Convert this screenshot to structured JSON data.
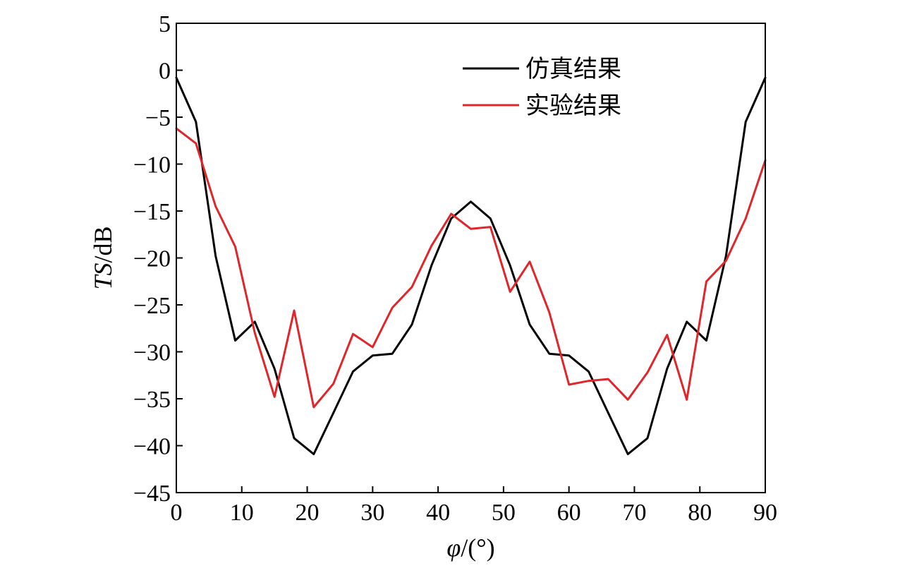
{
  "chart_data": {
    "type": "line",
    "xlabel_symbol": "φ",
    "xlabel_unit": "/(°)",
    "ylabel_symbol": "TS",
    "ylabel_unit": "/dB",
    "xlim": [
      0,
      90
    ],
    "ylim": [
      -45,
      5
    ],
    "xticks": [
      0,
      10,
      20,
      30,
      40,
      50,
      60,
      70,
      80,
      90
    ],
    "yticks": [
      5,
      0,
      -5,
      -10,
      -15,
      -20,
      -25,
      -30,
      -35,
      -40,
      -45
    ],
    "ytick_labels": [
      "5",
      "0",
      "−5",
      "−10",
      "−15",
      "−20",
      "−25",
      "−30",
      "−35",
      "−40",
      "−45"
    ],
    "grid": false,
    "legend_position": "top-right",
    "series": [
      {
        "name": "仿真结果",
        "color": "#000000",
        "x": [
          0,
          3,
          6,
          9,
          12,
          15,
          18,
          21,
          24,
          27,
          30,
          33,
          36,
          39,
          42,
          45,
          48,
          51,
          54,
          57,
          60,
          63,
          66,
          69,
          72,
          75,
          78,
          81,
          84,
          87,
          90
        ],
        "y": [
          -0.8,
          -5.5,
          -19.8,
          -28.8,
          -26.8,
          -31.8,
          -39.2,
          -40.9,
          -36.5,
          -32.1,
          -30.4,
          -30.2,
          -27.1,
          -20.8,
          -15.8,
          -14.0,
          -15.8,
          -20.8,
          -27.1,
          -30.2,
          -30.4,
          -32.1,
          -36.5,
          -40.9,
          -39.2,
          -31.8,
          -26.8,
          -28.8,
          -19.8,
          -5.5,
          -0.8
        ]
      },
      {
        "name": "实验结果",
        "color": "#e0262b",
        "x": [
          0,
          3,
          6,
          9,
          12,
          15,
          18,
          21,
          24,
          27,
          30,
          33,
          36,
          39,
          42,
          45,
          48,
          51,
          54,
          57,
          60,
          63,
          66,
          69,
          72,
          75,
          78,
          81,
          84,
          87,
          90
        ],
        "y": [
          -6.2,
          -7.8,
          -14.5,
          -18.8,
          -28.0,
          -34.8,
          -25.6,
          -35.9,
          -33.4,
          -28.1,
          -29.5,
          -25.3,
          -23.1,
          -18.7,
          -15.3,
          -16.9,
          -16.7,
          -23.6,
          -20.4,
          -25.8,
          -33.5,
          -33.1,
          -32.9,
          -35.1,
          -32.2,
          -28.2,
          -35.1,
          -22.5,
          -20.3,
          -15.8,
          -9.6
        ]
      }
    ]
  }
}
